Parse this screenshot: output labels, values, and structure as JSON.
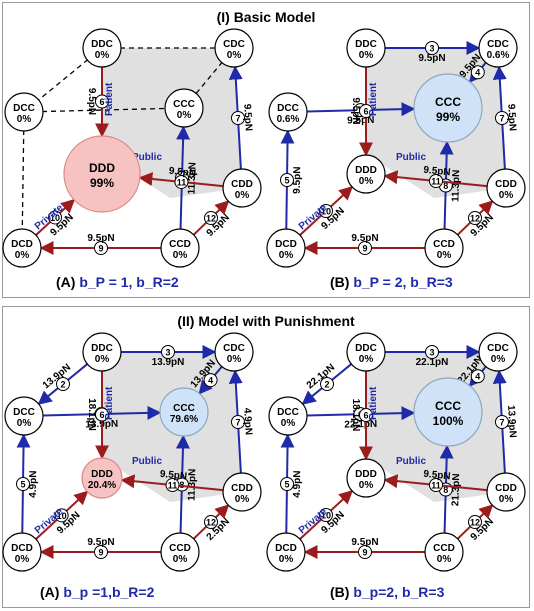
{
  "sections": [
    {
      "title": "(I) Basic Model"
    },
    {
      "title": "(II) Model with Punishment"
    }
  ],
  "panels": [
    {
      "label": "(A)",
      "params": "b_P = 1, b_R=2",
      "nodes": {
        "DDC": "0%",
        "CDC": "0%",
        "DCC": "0%",
        "CCC": "0%",
        "DDD": "99%",
        "CDD": "0%",
        "DCD": "0%",
        "CCD": "0%"
      },
      "center": "DDD",
      "edge_labels": {
        "e6": "9.5pN",
        "e7": "9.5pN",
        "e8": "11.3pN",
        "e11": "9.5pN",
        "e12": "9.5pN",
        "e10": "9.5pN",
        "e9": "9.5pN"
      }
    },
    {
      "label": "(B)",
      "params": "b_P = 2, b_R=3",
      "nodes": {
        "DDC": "0%",
        "CDC": "0.6%",
        "DCC": "0.6%",
        "CCC": "99%",
        "DDD": "0%",
        "CDD": "0%",
        "DCD": "0%",
        "CCD": "0%"
      },
      "center": "CCC",
      "edge_labels": {
        "e3": "9.5pN",
        "e4": "9.5pN",
        "e1": "9.5pN",
        "e6": "9.5pN",
        "e5": "9.5pN",
        "e7": "9.5pN",
        "e8": "11.3pN",
        "e11": "9.5pN",
        "e12": "9.5pN",
        "e10": "9.5pN",
        "e9": "9.5pN"
      }
    },
    {
      "label": "(A)",
      "params": "b_p =1,b_R=2",
      "nodes": {
        "DDC": "0%",
        "CDC": "0%",
        "DCC": "0%",
        "CCC": "79.6%",
        "DDD": "20.4%",
        "CDD": "0%",
        "DCD": "0%",
        "CCD": "0%"
      },
      "center": "both",
      "edge_labels": {
        "e3": "13.9pN",
        "e2": "13.9pN",
        "e4": "13.9pN",
        "e1": "13.9pN",
        "e6": "18.1pN",
        "e5": "4.9pN",
        "e7": "4.9pN",
        "e8": "11.3pN",
        "e11": "9.5pN",
        "e12": "2.5pN",
        "e10": "9.5pN",
        "e9": "9.5pN"
      }
    },
    {
      "label": "(B)",
      "params": "b_p=2, b_R=3",
      "nodes": {
        "DDC": "0%",
        "CDC": "0%",
        "DCC": "0%",
        "CCC": "100%",
        "DDD": "0%",
        "CDD": "0%",
        "DCD": "0%",
        "CCD": "0%"
      },
      "center": "CCC",
      "edge_labels": {
        "e3": "22.1pN",
        "e2": "22.1pN",
        "e4": "22.1pN",
        "e1": "22.1pN",
        "e6": "18.1pN",
        "e5": "4.9pN",
        "e7": "13.9pN",
        "e8": "21.3pN",
        "e11": "9.5pN",
        "e12": "9.5pN",
        "e10": "9.5pN",
        "e9": "9.5pN"
      }
    }
  ],
  "edge_kind_labels": {
    "patient": "Patient",
    "public": "Public",
    "private": "Private"
  },
  "colors": {
    "blue": "#1f2aa8",
    "red": "#9b1c1c",
    "pink": "#f6c2c2",
    "lightblue": "#cfe2f7",
    "grey": "#e0e0e0"
  }
}
